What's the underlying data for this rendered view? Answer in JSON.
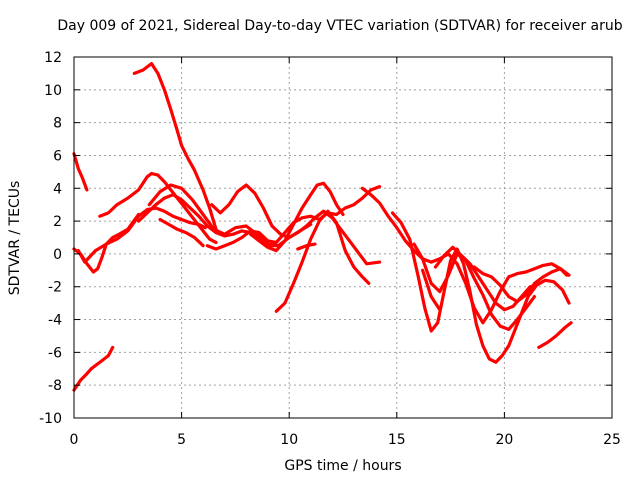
{
  "chart_data": {
    "type": "line",
    "title": "Day 009 of 2021, Sidereal Day-to-day VTEC variation (SDTVAR) for receiver arub",
    "xlabel": "GPS time / hours",
    "ylabel": "SDTVAR / TECUs",
    "xlim": [
      0,
      25
    ],
    "ylim": [
      -10,
      12
    ],
    "xticks": [
      0,
      5,
      10,
      15,
      20,
      25
    ],
    "yticks": [
      -10,
      -8,
      -6,
      -4,
      -2,
      0,
      2,
      4,
      6,
      8,
      10,
      12
    ],
    "grid": true,
    "color": "#ff0000",
    "series": [
      {
        "name": "s1",
        "x": [
          0.0,
          0.3,
          0.6,
          0.8,
          1.0,
          1.3,
          1.6,
          1.8
        ],
        "y": [
          -8.3,
          -7.7,
          -7.3,
          -7.0,
          -6.8,
          -6.5,
          -6.2,
          -5.7
        ]
      },
      {
        "name": "s2",
        "x": [
          0.0,
          0.2,
          0.4,
          0.6
        ],
        "y": [
          6.1,
          5.2,
          4.6,
          3.9
        ]
      },
      {
        "name": "s3",
        "x": [
          0.0,
          0.3,
          0.6,
          0.9,
          1.1,
          1.3,
          1.5,
          1.8,
          2.1,
          2.5,
          3.0
        ],
        "y": [
          0.3,
          0.0,
          -0.6,
          -1.1,
          -0.9,
          -0.2,
          0.6,
          1.0,
          1.2,
          1.5,
          2.4
        ]
      },
      {
        "name": "s4",
        "x": [
          0.2,
          0.5,
          1.0,
          1.5,
          2.0,
          2.5,
          3.0,
          3.4,
          3.8,
          4.2,
          4.6,
          5.0,
          5.4,
          5.8,
          6.1
        ],
        "y": [
          0.2,
          -0.5,
          0.2,
          0.6,
          0.9,
          1.4,
          2.3,
          2.7,
          2.8,
          2.6,
          2.3,
          2.1,
          1.9,
          1.8,
          1.6
        ]
      },
      {
        "name": "s5",
        "x": [
          1.2,
          1.6,
          2.0,
          2.5,
          3.0,
          3.4,
          3.6,
          3.9,
          4.2,
          4.5,
          4.8,
          5.1,
          5.4,
          5.7,
          6.0,
          6.3,
          6.6
        ],
        "y": [
          2.3,
          2.5,
          3.0,
          3.4,
          3.9,
          4.7,
          4.9,
          4.8,
          4.4,
          3.9,
          3.4,
          2.9,
          2.4,
          1.9,
          1.4,
          0.9,
          0.7
        ]
      },
      {
        "name": "s6",
        "x": [
          2.8,
          3.2,
          3.6,
          3.9,
          4.2,
          4.5,
          4.8,
          5.0,
          5.3,
          5.6,
          5.8,
          6.0,
          6.3,
          6.6
        ],
        "y": [
          11.0,
          11.2,
          11.6,
          11.0,
          10.0,
          8.8,
          7.5,
          6.6,
          5.8,
          5.1,
          4.5,
          3.9,
          2.8,
          1.5
        ]
      },
      {
        "name": "s7",
        "x": [
          3.0,
          3.4,
          3.8,
          4.2,
          4.6,
          5.0,
          5.4,
          5.8,
          6.2,
          6.6,
          7.0,
          7.4,
          7.8,
          8.2,
          8.5,
          8.8,
          9.1,
          9.5
        ],
        "y": [
          2.0,
          2.5,
          3.0,
          3.4,
          3.6,
          3.3,
          2.8,
          2.3,
          1.7,
          1.3,
          1.1,
          1.2,
          1.4,
          1.3,
          1.0,
          0.7,
          0.5,
          0.5
        ]
      },
      {
        "name": "s8",
        "x": [
          3.5,
          4.0,
          4.5,
          5.0,
          5.5,
          6.0,
          6.5,
          7.0,
          7.5,
          8.0,
          8.5,
          9.0,
          9.5,
          10.0,
          10.5,
          11.0
        ],
        "y": [
          3.0,
          3.8,
          4.2,
          4.0,
          3.3,
          2.4,
          1.5,
          1.2,
          1.6,
          1.7,
          1.2,
          0.6,
          0.5,
          1.0,
          1.4,
          1.8
        ]
      },
      {
        "name": "s9",
        "x": [
          4.0,
          4.4,
          4.8,
          5.2,
          5.6,
          6.0
        ],
        "y": [
          2.1,
          1.8,
          1.5,
          1.3,
          1.0,
          0.5
        ]
      },
      {
        "name": "s10",
        "x": [
          6.2,
          6.6,
          7.0,
          7.4,
          7.8,
          8.2,
          8.6,
          9.0,
          9.4,
          9.8,
          10.2,
          10.6,
          11.0,
          11.4,
          11.8,
          12.2,
          12.6,
          13.0,
          13.4,
          13.8,
          14.2
        ],
        "y": [
          0.5,
          0.3,
          0.5,
          0.7,
          1.0,
          1.4,
          1.3,
          0.8,
          0.7,
          1.3,
          1.9,
          2.2,
          2.3,
          2.1,
          2.5,
          2.4,
          2.8,
          3.0,
          3.4,
          3.9,
          4.1
        ]
      },
      {
        "name": "s11",
        "x": [
          6.4,
          6.8,
          7.2,
          7.6,
          8.0,
          8.4,
          8.8,
          9.2,
          9.6,
          10.0,
          10.4,
          10.8,
          11.2,
          11.6,
          12.0,
          12.4,
          12.8,
          13.2,
          13.6,
          14.2
        ],
        "y": [
          3.0,
          2.5,
          3.0,
          3.8,
          4.2,
          3.7,
          2.8,
          1.7,
          1.2,
          1.0,
          1.3,
          1.7,
          2.2,
          2.6,
          2.2,
          1.5,
          0.8,
          0.1,
          -0.6,
          -0.5
        ]
      },
      {
        "name": "s12",
        "x": [
          8.2,
          8.6,
          9.0,
          9.4,
          9.8,
          10.2,
          10.6,
          11.0,
          11.3,
          11.6,
          11.9,
          12.2,
          12.5
        ],
        "y": [
          1.2,
          0.8,
          0.4,
          0.2,
          0.8,
          1.8,
          2.8,
          3.6,
          4.2,
          4.3,
          3.8,
          3.0,
          2.4
        ]
      },
      {
        "name": "s13",
        "x": [
          9.4,
          9.8,
          10.2,
          10.6,
          11.0,
          11.4,
          11.8,
          12.2,
          12.6,
          13.0,
          13.4,
          13.7
        ],
        "y": [
          -3.5,
          -3.0,
          -1.8,
          -0.5,
          0.9,
          2.0,
          2.6,
          1.9,
          0.2,
          -0.8,
          -1.4,
          -1.8
        ]
      },
      {
        "name": "s14",
        "x": [
          10.4,
          10.8,
          11.2
        ],
        "y": [
          0.3,
          0.5,
          0.6
        ]
      },
      {
        "name": "s15",
        "x": [
          13.4,
          13.8,
          14.2,
          14.6,
          15.0,
          15.4,
          15.8,
          16.2,
          16.6,
          17.0,
          17.4,
          17.8,
          18.2,
          18.6,
          19.0,
          19.4,
          19.8,
          20.2,
          20.6,
          21.0,
          21.4,
          21.8,
          22.2,
          22.6,
          22.9
        ],
        "y": [
          4.0,
          3.6,
          3.1,
          2.3,
          1.6,
          0.8,
          0.2,
          -0.3,
          -0.5,
          -0.3,
          0.0,
          -0.6,
          -1.8,
          -3.3,
          -4.2,
          -3.4,
          -2.3,
          -1.4,
          -1.2,
          -1.1,
          -0.9,
          -0.7,
          -0.6,
          -0.9,
          -1.3
        ]
      },
      {
        "name": "s16",
        "x": [
          14.8,
          15.2,
          15.6,
          16.0,
          16.3,
          16.6,
          16.9,
          17.2,
          17.5,
          17.8,
          18.1,
          18.4,
          18.7,
          19.0,
          19.3,
          19.6,
          19.9,
          20.2,
          20.5,
          20.8,
          21.1,
          21.5,
          21.9,
          22.3,
          22.7,
          23.0
        ],
        "y": [
          2.5,
          1.9,
          0.9,
          -1.4,
          -3.3,
          -4.7,
          -4.2,
          -2.3,
          -0.4,
          0.3,
          -0.6,
          -2.3,
          -4.3,
          -5.6,
          -6.4,
          -6.6,
          -6.2,
          -5.6,
          -4.6,
          -3.6,
          -2.6,
          -1.9,
          -1.6,
          -1.7,
          -2.2,
          -3.0
        ]
      },
      {
        "name": "s17",
        "x": [
          15.8,
          16.2,
          16.6,
          17.0,
          17.4,
          17.8,
          18.2,
          18.6,
          19.0,
          19.4,
          19.8,
          20.2,
          20.6,
          21.0,
          21.4
        ],
        "y": [
          0.6,
          -0.3,
          -1.8,
          -2.3,
          -1.3,
          0.0,
          -0.4,
          -1.5,
          -2.5,
          -3.7,
          -4.4,
          -4.6,
          -4.0,
          -3.3,
          -2.6
        ]
      },
      {
        "name": "s18",
        "x": [
          16.8,
          17.2,
          17.6,
          18.0,
          18.4,
          18.8,
          19.2,
          19.6,
          20.0,
          20.4,
          20.8,
          21.2
        ],
        "y": [
          -0.8,
          -0.1,
          0.4,
          -0.1,
          -0.6,
          -1.4,
          -2.2,
          -3.0,
          -3.4,
          -3.2,
          -2.6,
          -2.0
        ]
      },
      {
        "name": "s19",
        "x": [
          16.2,
          16.6,
          17.0
        ],
        "y": [
          -1.0,
          -2.6,
          -3.4
        ]
      },
      {
        "name": "s20",
        "x": [
          18.6,
          19.0,
          19.4,
          19.8,
          20.2,
          20.6,
          21.0,
          21.4,
          21.8,
          22.2,
          22.6,
          23.0
        ],
        "y": [
          -0.8,
          -1.2,
          -1.4,
          -1.9,
          -2.6,
          -2.9,
          -2.5,
          -1.8,
          -1.4,
          -1.1,
          -0.9,
          -1.3
        ]
      },
      {
        "name": "s21",
        "x": [
          21.6,
          22.0,
          22.4,
          22.8,
          23.1
        ],
        "y": [
          -5.7,
          -5.4,
          -5.0,
          -4.5,
          -4.2
        ]
      }
    ]
  }
}
